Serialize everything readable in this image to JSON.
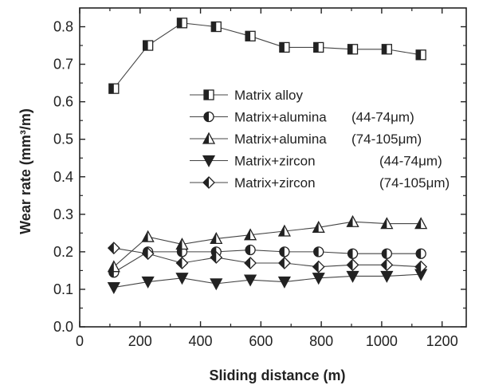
{
  "chart_data": {
    "type": "line",
    "title": "",
    "xlabel": "Sliding distance (m)",
    "ylabel": "Wear rate (mm³/m)",
    "xlim": [
      0,
      1280
    ],
    "ylim": [
      0,
      0.85
    ],
    "xticks": [
      0,
      200,
      400,
      600,
      800,
      1000,
      1200
    ],
    "xtick_labels": [
      "0",
      "200",
      "400",
      "600",
      "800",
      "1000",
      "1200"
    ],
    "yticks": [
      0.0,
      0.1,
      0.2,
      0.3,
      0.4,
      0.5,
      0.6,
      0.7,
      0.8
    ],
    "ytick_labels": [
      "0.0",
      "0.1",
      "0.2",
      "0.3",
      "0.4",
      "0.5",
      "0.6",
      "0.7",
      "0.8"
    ],
    "grid": false,
    "legend_position": "center",
    "x": [
      113,
      226,
      339,
      452,
      565,
      678,
      791,
      904,
      1017,
      1130
    ],
    "series": [
      {
        "name": "Matrix alloy",
        "marker": "square-half",
        "values": [
          0.635,
          0.75,
          0.81,
          0.8,
          0.775,
          0.745,
          0.745,
          0.74,
          0.74,
          0.725
        ]
      },
      {
        "name": "Matrix+alumina (44-74μm)",
        "marker": "circle-half",
        "values": [
          0.145,
          0.2,
          0.2,
          0.2,
          0.205,
          0.2,
          0.2,
          0.195,
          0.195,
          0.195
        ]
      },
      {
        "name": "Matrix+alumina (74-105μm)",
        "marker": "triangle-up",
        "values": [
          0.16,
          0.24,
          0.22,
          0.235,
          0.245,
          0.255,
          0.265,
          0.28,
          0.275,
          0.275
        ]
      },
      {
        "name": "Matrix+zircon (44-74μm)",
        "marker": "triangle-down",
        "values": [
          0.105,
          0.12,
          0.13,
          0.115,
          0.125,
          0.12,
          0.13,
          0.135,
          0.135,
          0.14
        ]
      },
      {
        "name": "Matrix+zircon (74-105μm)",
        "marker": "diamond-half",
        "values": [
          0.21,
          0.195,
          0.17,
          0.185,
          0.17,
          0.17,
          0.16,
          0.165,
          0.165,
          0.16
        ]
      }
    ],
    "legend_display": [
      {
        "label": "Matrix alloy",
        "range": ""
      },
      {
        "label": "Matrix+alumina",
        "range": "(44-74μm)"
      },
      {
        "label": "Matrix+alumina",
        "range": "(74-105μm)"
      },
      {
        "label": "Matrix+zircon",
        "range": "(44-74μm)"
      },
      {
        "label": "Matrix+zircon",
        "range": "(74-105μm)"
      }
    ]
  }
}
